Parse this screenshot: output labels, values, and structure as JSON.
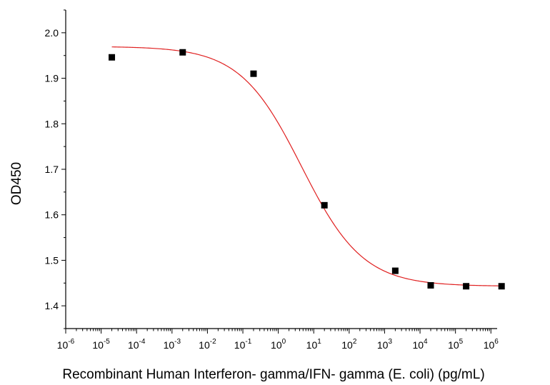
{
  "chart_data": {
    "type": "scatter",
    "xscale": "log",
    "xlabel": "Recombinant Human Interferon- gamma/IFN- gamma (E. coli) (pg/mL)",
    "ylabel": "OD450",
    "xlim": [
      1e-06,
      1500000.0
    ],
    "ylim": [
      1.35,
      2.05
    ],
    "x_ticks": [
      {
        "base": "10",
        "exp": "-6",
        "value": 1e-06
      },
      {
        "base": "10",
        "exp": "-5",
        "value": 1e-05
      },
      {
        "base": "10",
        "exp": "-4",
        "value": 0.0001
      },
      {
        "base": "10",
        "exp": "-3",
        "value": 0.001
      },
      {
        "base": "10",
        "exp": "-2",
        "value": 0.01
      },
      {
        "base": "10",
        "exp": "-1",
        "value": 0.1
      },
      {
        "base": "10",
        "exp": "0",
        "value": 1
      },
      {
        "base": "10",
        "exp": "1",
        "value": 10
      },
      {
        "base": "10",
        "exp": "2",
        "value": 100
      },
      {
        "base": "10",
        "exp": "3",
        "value": 1000
      },
      {
        "base": "10",
        "exp": "4",
        "value": 10000
      },
      {
        "base": "10",
        "exp": "5",
        "value": 100000
      },
      {
        "base": "10",
        "exp": "6",
        "value": 1000000
      }
    ],
    "y_ticks": [
      "1.4",
      "1.5",
      "1.6",
      "1.7",
      "1.8",
      "1.9",
      "2.0"
    ],
    "series": [
      {
        "points": [
          {
            "x": 2e-05,
            "y": 1.946
          },
          {
            "x": 0.002,
            "y": 1.957
          },
          {
            "x": 0.2,
            "y": 1.91
          },
          {
            "x": 20,
            "y": 1.621
          },
          {
            "x": 2000,
            "y": 1.477
          },
          {
            "x": 20000,
            "y": 1.445
          },
          {
            "x": 200000,
            "y": 1.443
          },
          {
            "x": 2000000,
            "y": 1.443
          }
        ],
        "marker_color": "#000000"
      }
    ],
    "fit": {
      "model": "4PL",
      "top": 1.97,
      "bottom": 1.443,
      "ec50": 4.5,
      "hill": 0.5,
      "color": "#e02020"
    },
    "grid": false
  }
}
